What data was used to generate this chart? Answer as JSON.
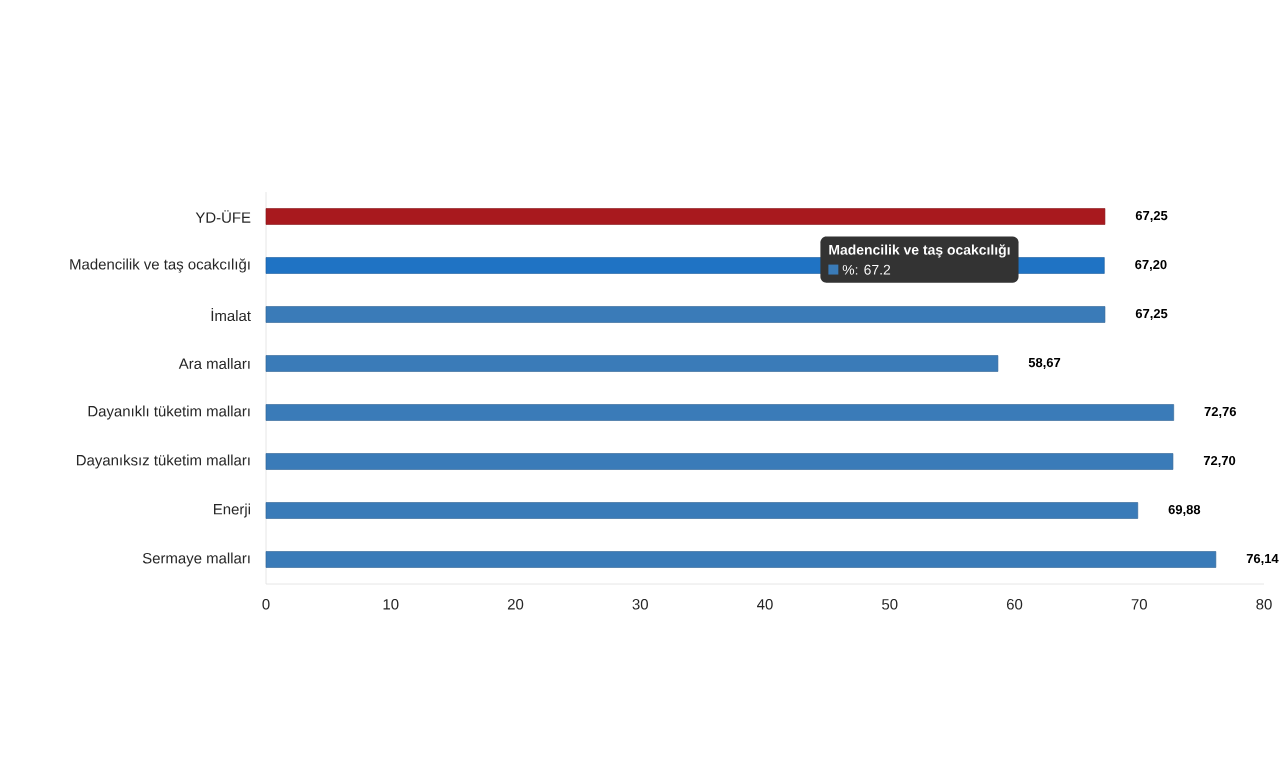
{
  "chart_data": {
    "type": "bar",
    "orientation": "horizontal",
    "categories": [
      "YD-ÜFE",
      "Madencilik ve taş ocakcılığı",
      "İmalat",
      "Ara malları",
      "Dayanıklı tüketim malları",
      "Dayanıksız tüketim malları",
      "Enerji",
      "Sermaye malları"
    ],
    "values": [
      67.25,
      67.2,
      67.25,
      58.67,
      72.76,
      72.7,
      69.88,
      76.14
    ],
    "colors": [
      "#a8191e",
      "#1f73c4",
      "#3a7bb8",
      "#3a7bb8",
      "#3a7bb8",
      "#3a7bb8",
      "#3a7bb8",
      "#3a7bb8"
    ],
    "value_labels": [
      "67,25",
      "67,20",
      "67,25",
      "58,67",
      "72,76",
      "72,70",
      "69,88",
      "76,14"
    ],
    "xlim": [
      0,
      80
    ],
    "xticks": [
      0,
      10,
      20,
      30,
      40,
      50,
      60,
      70,
      80
    ],
    "annotations": [
      "Madencilik ve taş ocakcılığı",
      "%: 67.2"
    ],
    "grid": false
  }
}
